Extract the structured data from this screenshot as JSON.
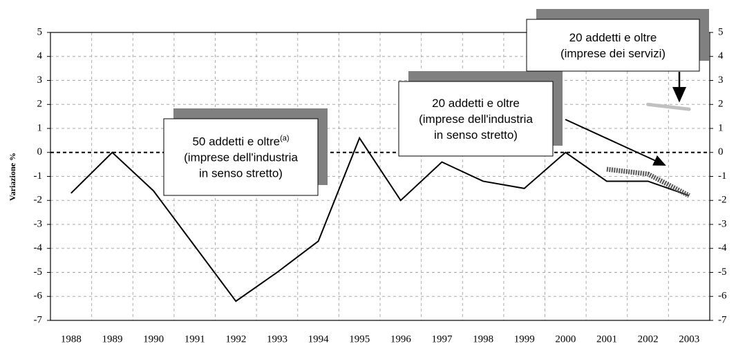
{
  "chart_data": {
    "type": "line",
    "y_label": "Variazione %",
    "categories": [
      "1988",
      "1989",
      "1990",
      "1991",
      "1992",
      "1993",
      "1994",
      "1995",
      "1996",
      "1997",
      "1998",
      "1999",
      "2000",
      "2001",
      "2002",
      "2003"
    ],
    "series": [
      {
        "color": "#000000",
        "values": [
          -1.7,
          0,
          -1.6,
          -3.9,
          -6.2,
          -5.0,
          -3.7,
          0.6,
          -2.0,
          -0.4,
          -1.2,
          -1.5,
          0,
          -1.2,
          -1.2,
          -1.8
        ]
      },
      {
        "color": "#555555",
        "values": [
          null,
          null,
          null,
          null,
          null,
          null,
          null,
          null,
          null,
          null,
          null,
          null,
          null,
          -0.7,
          -0.9,
          -1.8
        ]
      },
      {
        "color": "#c0c0c0",
        "values": [
          null,
          null,
          null,
          null,
          null,
          null,
          null,
          null,
          null,
          null,
          null,
          null,
          null,
          null,
          2.0,
          1.8
        ]
      }
    ],
    "ylim": [
      -7,
      5
    ],
    "yticks": [
      -7,
      -6,
      -5,
      -4,
      -3,
      -2,
      -1,
      0,
      1,
      2,
      3,
      4,
      5
    ],
    "grid": true,
    "annotations": [
      {
        "lines": [
          "50 addetti e oltre",
          "(imprese dell'industria",
          "in senso stretto)"
        ],
        "superscript": "(a)"
      },
      {
        "lines": [
          "20 addetti e oltre",
          "(imprese dell'industria",
          "in senso stretto)"
        ]
      },
      {
        "lines": [
          "20 addetti e oltre",
          "(imprese dei servizi)"
        ]
      }
    ]
  }
}
